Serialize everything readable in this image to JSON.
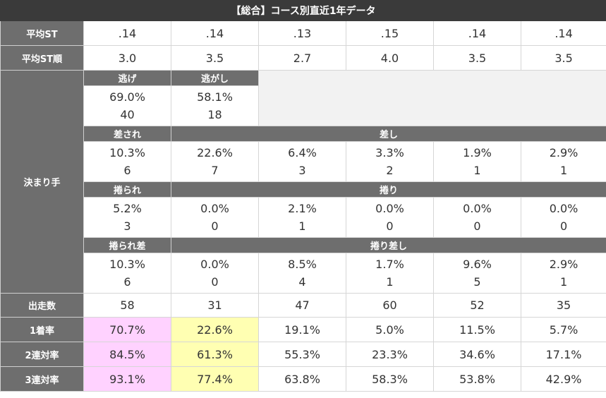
{
  "title": "【総合】コース別直近1年データ",
  "avg_st": {
    "label": "平均ST",
    "values": [
      ".14",
      ".14",
      ".13",
      ".15",
      ".14",
      ".14"
    ]
  },
  "avg_st_rank": {
    "label": "平均ST順",
    "values": [
      "3.0",
      "3.5",
      "2.7",
      "4.0",
      "3.5",
      "3.5"
    ]
  },
  "kimarite": {
    "label": "決まり手",
    "nige": {
      "label": "逃げ",
      "pct": "69.0%",
      "count": "40"
    },
    "nigashi": {
      "label": "逃がし",
      "pct": "58.1%",
      "count": "18"
    },
    "sasare_label": "差され",
    "sashi_label": "差し",
    "sashi_block": [
      {
        "pct": "10.3%",
        "count": "6"
      },
      {
        "pct": "22.6%",
        "count": "7"
      },
      {
        "pct": "6.4%",
        "count": "3"
      },
      {
        "pct": "3.3%",
        "count": "2"
      },
      {
        "pct": "1.9%",
        "count": "1"
      },
      {
        "pct": "2.9%",
        "count": "1"
      }
    ],
    "makurare_label": "捲られ",
    "makuri_label": "捲り",
    "makuri_block": [
      {
        "pct": "5.2%",
        "count": "3"
      },
      {
        "pct": "0.0%",
        "count": "0"
      },
      {
        "pct": "2.1%",
        "count": "1"
      },
      {
        "pct": "0.0%",
        "count": "0"
      },
      {
        "pct": "0.0%",
        "count": "0"
      },
      {
        "pct": "0.0%",
        "count": "0"
      }
    ],
    "makurarezashi_label": "捲られ差",
    "makurizashi_label": "捲り差し",
    "makurizashi_block": [
      {
        "pct": "10.3%",
        "count": "6"
      },
      {
        "pct": "0.0%",
        "count": "0"
      },
      {
        "pct": "8.5%",
        "count": "4"
      },
      {
        "pct": "1.7%",
        "count": "1"
      },
      {
        "pct": "9.6%",
        "count": "5"
      },
      {
        "pct": "2.9%",
        "count": "1"
      }
    ]
  },
  "starts": {
    "label": "出走数",
    "values": [
      "58",
      "31",
      "47",
      "60",
      "52",
      "35"
    ]
  },
  "win_rate": {
    "label": "1着率",
    "values": [
      "70.7%",
      "22.6%",
      "19.1%",
      "5.0%",
      "11.5%",
      "5.7%"
    ]
  },
  "top2_rate": {
    "label": "2連対率",
    "values": [
      "84.5%",
      "61.3%",
      "55.3%",
      "23.3%",
      "34.6%",
      "17.1%"
    ]
  },
  "top3_rate": {
    "label": "3連対率",
    "values": [
      "93.1%",
      "77.4%",
      "63.8%",
      "58.3%",
      "53.8%",
      "42.9%"
    ]
  },
  "colors": {
    "header_bg": "#3a3a3a",
    "label_bg": "#6e6e6e",
    "highlight_course1": "#ffd2ff",
    "highlight_course2": "#ffffb2",
    "empty_bg": "#f2f2f2"
  }
}
